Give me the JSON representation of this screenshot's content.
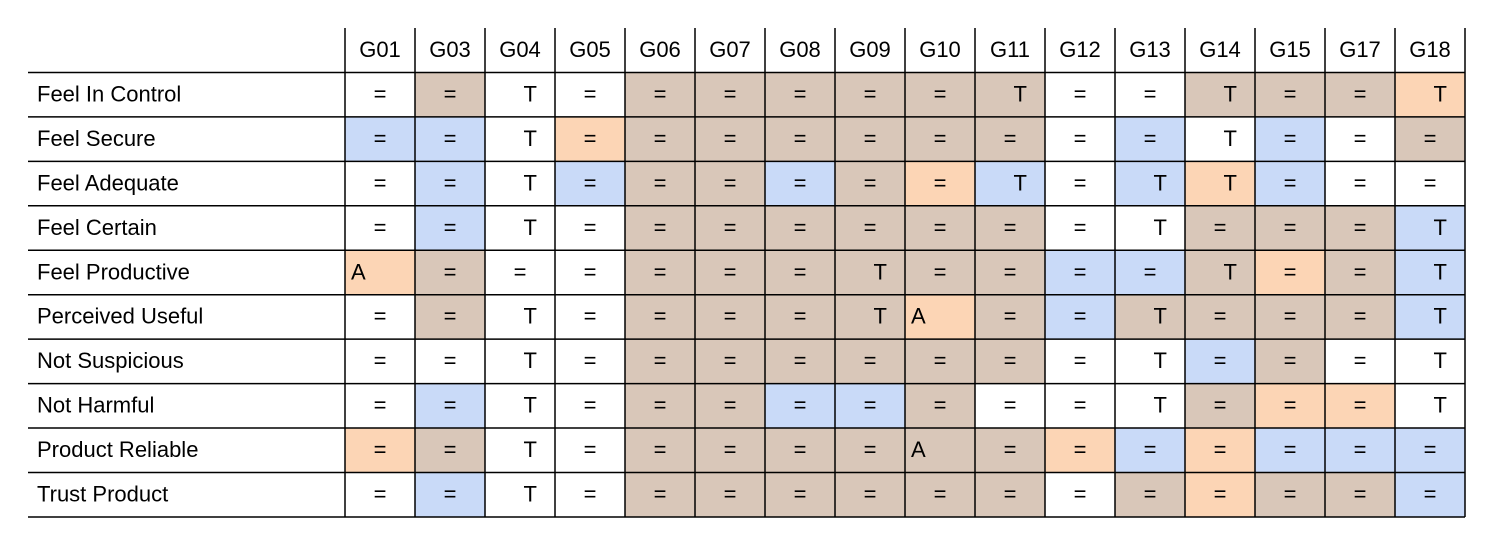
{
  "table": {
    "columns": [
      "G01",
      "G03",
      "G04",
      "G05",
      "G06",
      "G07",
      "G08",
      "G09",
      "G10",
      "G11",
      "G12",
      "G13",
      "G14",
      "G15",
      "G17",
      "G18"
    ],
    "rows": [
      {
        "label": "Feel In Control",
        "cells": [
          "=",
          "=",
          "T",
          "=",
          "=",
          "=",
          "=",
          "=",
          "=",
          "T",
          "=",
          "=",
          "T",
          "=",
          "=",
          "T"
        ],
        "fills": [
          "#ffffff",
          "#d9c7b9",
          "#ffffff",
          "#ffffff",
          "#d9c7b9",
          "#d9c7b9",
          "#d9c7b9",
          "#d9c7b9",
          "#d9c7b9",
          "#d9c7b9",
          "#ffffff",
          "#ffffff",
          "#d9c7b9",
          "#d9c7b9",
          "#d9c7b9",
          "#fcd5b5"
        ]
      },
      {
        "label": "Feel Secure",
        "cells": [
          "=",
          "=",
          "T",
          "=",
          "=",
          "=",
          "=",
          "=",
          "=",
          "=",
          "=",
          "=",
          "T",
          "=",
          "=",
          "="
        ],
        "fills": [
          "#c9daf8",
          "#c9daf8",
          "#ffffff",
          "#fcd5b5",
          "#d9c7b9",
          "#d9c7b9",
          "#d9c7b9",
          "#d9c7b9",
          "#d9c7b9",
          "#d9c7b9",
          "#ffffff",
          "#c9daf8",
          "#ffffff",
          "#c9daf8",
          "#ffffff",
          "#d9c7b9"
        ]
      },
      {
        "label": "Feel Adequate",
        "cells": [
          "=",
          "=",
          "T",
          "=",
          "=",
          "=",
          "=",
          "=",
          "=",
          "T",
          "=",
          "T",
          "T",
          "=",
          "=",
          "="
        ],
        "fills": [
          "#ffffff",
          "#c9daf8",
          "#ffffff",
          "#c9daf8",
          "#d9c7b9",
          "#d9c7b9",
          "#c9daf8",
          "#d9c7b9",
          "#fcd5b5",
          "#c9daf8",
          "#ffffff",
          "#c9daf8",
          "#fcd5b5",
          "#c9daf8",
          "#ffffff",
          "#ffffff"
        ]
      },
      {
        "label": "Feel Certain",
        "cells": [
          "=",
          "=",
          "T",
          "=",
          "=",
          "=",
          "=",
          "=",
          "=",
          "=",
          "=",
          "T",
          "=",
          "=",
          "=",
          "T"
        ],
        "fills": [
          "#ffffff",
          "#c9daf8",
          "#ffffff",
          "#ffffff",
          "#d9c7b9",
          "#d9c7b9",
          "#d9c7b9",
          "#d9c7b9",
          "#d9c7b9",
          "#d9c7b9",
          "#ffffff",
          "#ffffff",
          "#d9c7b9",
          "#d9c7b9",
          "#d9c7b9",
          "#c9daf8"
        ]
      },
      {
        "label": "Feel Productive",
        "cells": [
          "A",
          "=",
          "=",
          "=",
          "=",
          "=",
          "=",
          "T",
          "=",
          "=",
          "=",
          "=",
          "T",
          "=",
          "=",
          "T"
        ],
        "fills": [
          "#fcd5b5",
          "#d9c7b9",
          "#ffffff",
          "#ffffff",
          "#d9c7b9",
          "#d9c7b9",
          "#d9c7b9",
          "#d9c7b9",
          "#d9c7b9",
          "#d9c7b9",
          "#c9daf8",
          "#c9daf8",
          "#d9c7b9",
          "#fcd5b5",
          "#d9c7b9",
          "#c9daf8"
        ]
      },
      {
        "label": "Perceived Useful",
        "cells": [
          "=",
          "=",
          "T",
          "=",
          "=",
          "=",
          "=",
          "T",
          "A",
          "=",
          "=",
          "T",
          "=",
          "=",
          "=",
          "T"
        ],
        "fills": [
          "#ffffff",
          "#d9c7b9",
          "#ffffff",
          "#ffffff",
          "#d9c7b9",
          "#d9c7b9",
          "#d9c7b9",
          "#d9c7b9",
          "#fcd5b5",
          "#d9c7b9",
          "#c9daf8",
          "#d9c7b9",
          "#d9c7b9",
          "#d9c7b9",
          "#d9c7b9",
          "#c9daf8"
        ]
      },
      {
        "label": "Not Suspicious",
        "cells": [
          "=",
          "=",
          "T",
          "=",
          "=",
          "=",
          "=",
          "=",
          "=",
          "=",
          "=",
          "T",
          "=",
          "=",
          "=",
          "T"
        ],
        "fills": [
          "#ffffff",
          "#ffffff",
          "#ffffff",
          "#ffffff",
          "#d9c7b9",
          "#d9c7b9",
          "#d9c7b9",
          "#d9c7b9",
          "#d9c7b9",
          "#d9c7b9",
          "#ffffff",
          "#ffffff",
          "#c9daf8",
          "#d9c7b9",
          "#ffffff",
          "#ffffff"
        ]
      },
      {
        "label": "Not Harmful",
        "cells": [
          "=",
          "=",
          "T",
          "=",
          "=",
          "=",
          "=",
          "=",
          "=",
          "=",
          "=",
          "T",
          "=",
          "=",
          "=",
          "T"
        ],
        "fills": [
          "#ffffff",
          "#c9daf8",
          "#ffffff",
          "#ffffff",
          "#d9c7b9",
          "#d9c7b9",
          "#c9daf8",
          "#c9daf8",
          "#d9c7b9",
          "#ffffff",
          "#ffffff",
          "#ffffff",
          "#d9c7b9",
          "#fcd5b5",
          "#fcd5b5",
          "#ffffff"
        ]
      },
      {
        "label": "Product Reliable",
        "cells": [
          "=",
          "=",
          "T",
          "=",
          "=",
          "=",
          "=",
          "=",
          "A",
          "=",
          "=",
          "=",
          "=",
          "=",
          "=",
          "="
        ],
        "fills": [
          "#fcd5b5",
          "#d9c7b9",
          "#ffffff",
          "#ffffff",
          "#d9c7b9",
          "#d9c7b9",
          "#d9c7b9",
          "#d9c7b9",
          "#d9c7b9",
          "#d9c7b9",
          "#fcd5b5",
          "#c9daf8",
          "#fcd5b5",
          "#c9daf8",
          "#c9daf8",
          "#c9daf8"
        ]
      },
      {
        "label": "Trust Product",
        "cells": [
          "=",
          "=",
          "T",
          "=",
          "=",
          "=",
          "=",
          "=",
          "=",
          "=",
          "=",
          "=",
          "=",
          "=",
          "=",
          "="
        ],
        "fills": [
          "#ffffff",
          "#c9daf8",
          "#ffffff",
          "#ffffff",
          "#d9c7b9",
          "#d9c7b9",
          "#d9c7b9",
          "#d9c7b9",
          "#d9c7b9",
          "#d9c7b9",
          "#ffffff",
          "#d9c7b9",
          "#fcd5b5",
          "#d9c7b9",
          "#d9c7b9",
          "#c9daf8"
        ]
      }
    ]
  }
}
